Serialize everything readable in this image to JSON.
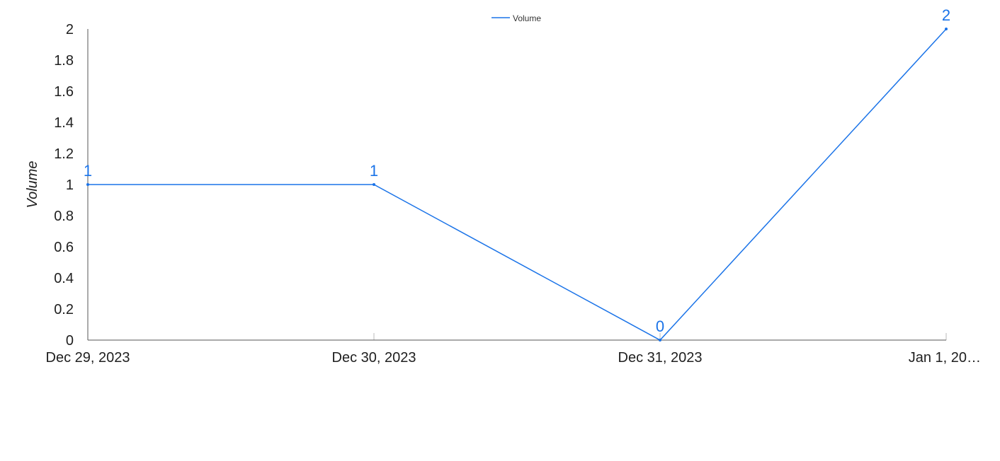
{
  "chart_data": {
    "type": "line",
    "title": "",
    "xlabel": "",
    "ylabel": "Volume",
    "x": [
      "Dec 29, 2023",
      "Dec 30, 2023",
      "Dec 31, 2023",
      "Jan 1, 20…"
    ],
    "series": [
      {
        "name": "Volume",
        "values": [
          1,
          1,
          0,
          2
        ],
        "color": "#1a73e8"
      }
    ],
    "ylim": [
      0,
      2
    ],
    "yticks": [
      "0",
      "0.2",
      "0.4",
      "0.6",
      "0.8",
      "1",
      "1.2",
      "1.4",
      "1.6",
      "1.8",
      "2"
    ],
    "data_labels": [
      "1",
      "1",
      "0",
      "2"
    ],
    "legend": "top-center",
    "grid": false
  }
}
